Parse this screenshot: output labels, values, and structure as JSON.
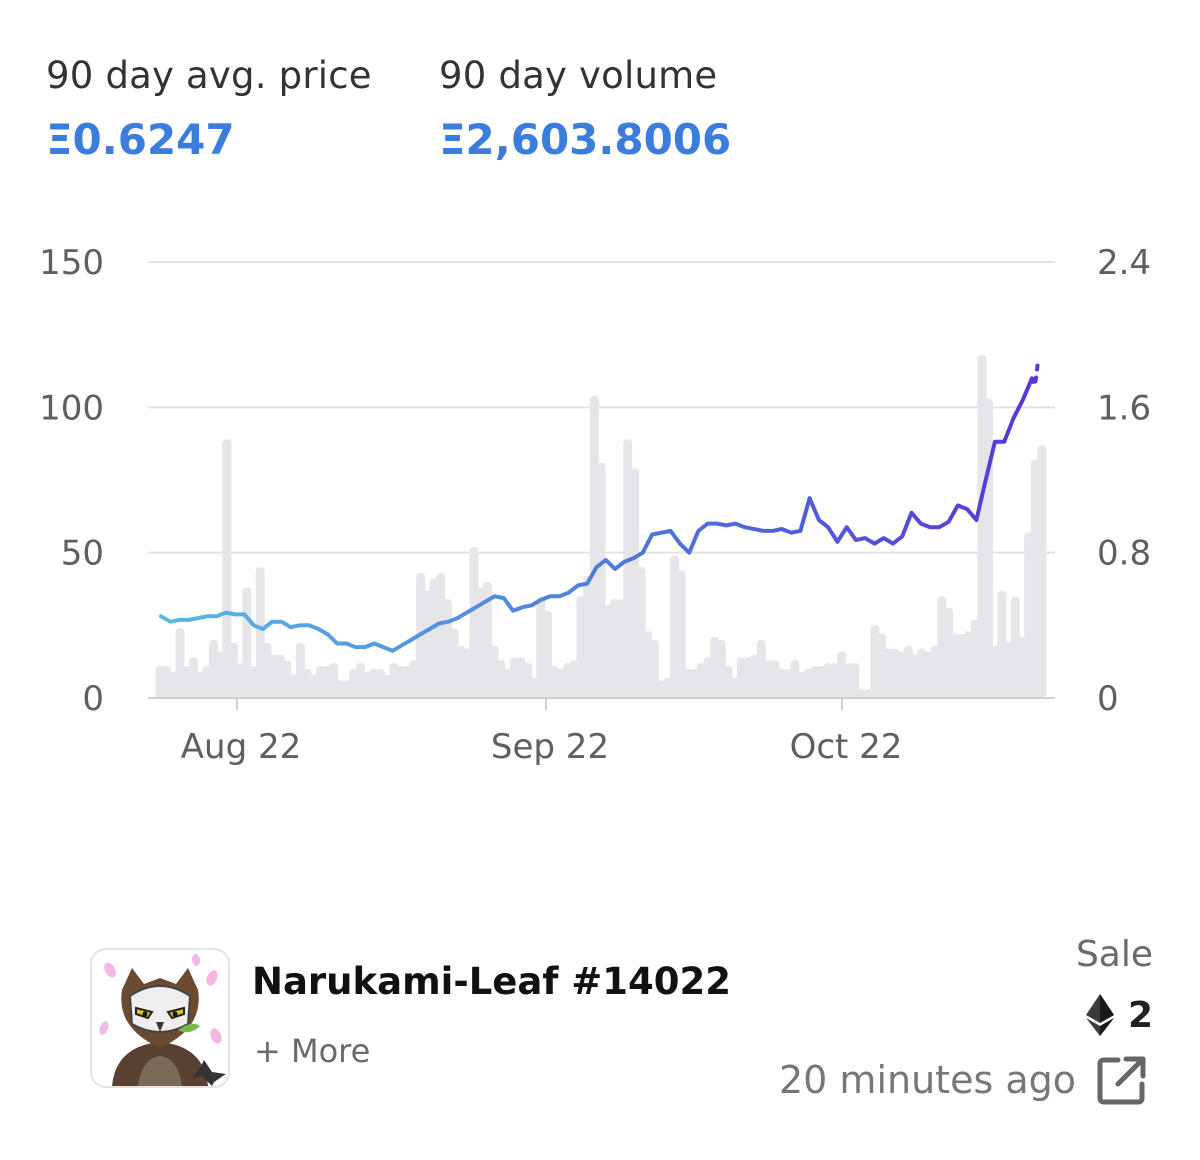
{
  "stats": {
    "avg_price_label": "90 day avg. price",
    "avg_price_value": "Ξ0.6247",
    "volume_label": "90 day volume",
    "volume_value": "Ξ2,603.8006"
  },
  "chart_data": {
    "type": "bar+line",
    "left_axis": {
      "ticks": [
        "150",
        "100",
        "50",
        "0"
      ],
      "ylim": [
        0,
        150
      ]
    },
    "right_axis": {
      "ticks": [
        "2.4",
        "1.6",
        "0.8",
        "0"
      ],
      "ylim": [
        0,
        2.4
      ]
    },
    "x_ticks": [
      "Aug 22",
      "Sep 22",
      "Oct 22"
    ],
    "grid": true,
    "volume_bars": [
      11,
      11,
      9,
      24,
      11,
      14,
      9,
      11,
      20,
      16,
      89,
      19,
      12,
      38,
      11,
      45,
      19,
      15,
      15,
      13,
      8,
      19,
      10,
      8,
      11,
      11,
      12,
      6,
      6,
      10,
      12,
      9,
      10,
      10,
      8,
      12,
      11,
      11,
      13,
      43,
      37,
      41,
      43,
      34,
      24,
      18,
      17,
      52,
      38,
      40,
      18,
      13,
      10,
      14,
      14,
      12,
      7,
      35,
      30,
      11,
      10,
      12,
      13,
      35,
      42,
      104,
      81,
      32,
      34,
      34,
      89,
      79,
      45,
      23,
      20,
      6,
      7,
      49,
      44,
      10,
      10,
      12,
      14,
      21,
      20,
      11,
      7,
      14,
      14,
      15,
      20,
      13,
      13,
      10,
      10,
      13,
      9,
      10,
      11,
      11,
      12,
      12,
      16,
      12,
      12,
      3,
      3,
      25,
      22,
      17,
      17,
      16,
      18,
      15,
      17,
      16,
      18,
      35,
      31,
      22,
      22,
      23,
      27,
      118,
      103,
      18,
      37,
      19,
      35,
      21,
      57,
      82,
      87
    ],
    "price_line": [
      0.45,
      0.42,
      0.43,
      0.43,
      0.44,
      0.45,
      0.45,
      0.47,
      0.46,
      0.46,
      0.4,
      0.38,
      0.42,
      0.42,
      0.39,
      0.4,
      0.4,
      0.38,
      0.35,
      0.3,
      0.3,
      0.28,
      0.28,
      0.3,
      0.28,
      0.26,
      0.29,
      0.32,
      0.35,
      0.38,
      0.41,
      0.42,
      0.44,
      0.47,
      0.5,
      0.53,
      0.56,
      0.55,
      0.48,
      0.5,
      0.51,
      0.54,
      0.56,
      0.56,
      0.58,
      0.62,
      0.63,
      0.72,
      0.76,
      0.71,
      0.75,
      0.77,
      0.8,
      0.9,
      0.91,
      0.92,
      0.85,
      0.8,
      0.92,
      0.96,
      0.96,
      0.95,
      0.96,
      0.94,
      0.93,
      0.92,
      0.92,
      0.93,
      0.91,
      0.92,
      1.1,
      0.98,
      0.94,
      0.86,
      0.94,
      0.87,
      0.88,
      0.85,
      0.88,
      0.85,
      0.89,
      1.02,
      0.96,
      0.94,
      0.94,
      0.97,
      1.06,
      1.04,
      0.98,
      1.2,
      1.41,
      1.41,
      1.54,
      1.64,
      1.76
    ],
    "price_projection": [
      1.72,
      1.85
    ]
  },
  "item": {
    "name": "Narukami-Leaf #14022",
    "more_label": "+ More",
    "sale_type": "Sale",
    "price": "2",
    "time": "20 minutes ago",
    "currency_icon": "ethereum-icon",
    "link_icon": "external-link-icon"
  }
}
